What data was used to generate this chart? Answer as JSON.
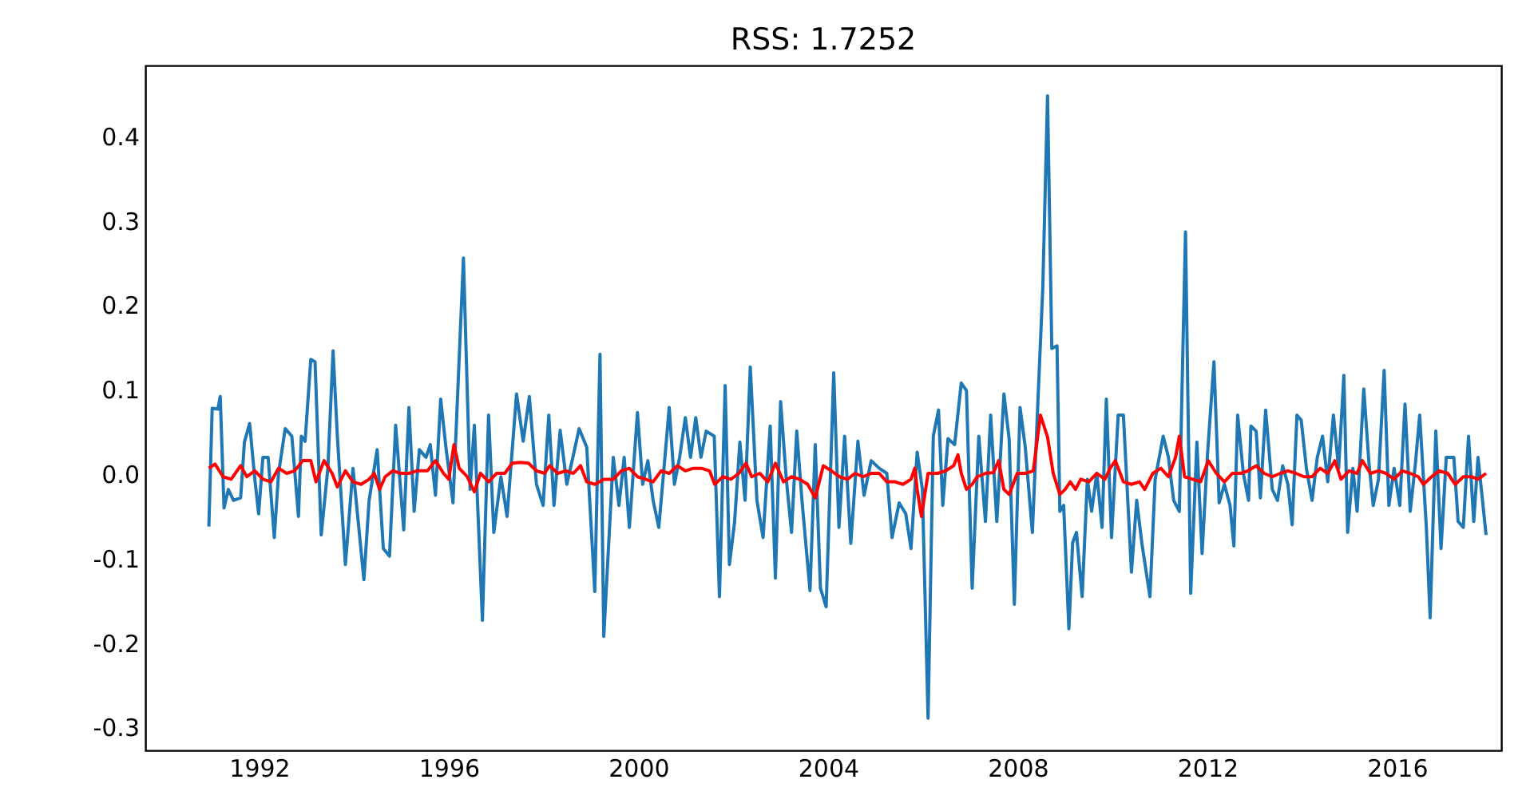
{
  "chart_data": {
    "type": "line",
    "title": "RSS: 1.7252",
    "xlim": [
      1989.6,
      2018.2
    ],
    "xticks": [
      1992,
      1996,
      2000,
      2004,
      2008,
      2012,
      2016
    ],
    "ylim": [
      -0.327,
      0.484
    ],
    "yticks": [
      -0.3,
      -0.2,
      -0.1,
      {
        "value": 0,
        "label": "0.0"
      },
      0.1,
      0.2,
      0.3,
      0.4
    ],
    "grid": false,
    "marker": "none",
    "line_style": "solid",
    "series": [
      {
        "color": "#1f77b4",
        "x": [
          1990.94,
          1991.01,
          1991.13,
          1991.18,
          1991.26,
          1991.35,
          1991.46,
          1991.61,
          1991.69,
          1991.8,
          1991.91,
          1991.99,
          1992.08,
          1992.19,
          1992.32,
          1992.41,
          1992.55,
          1992.69,
          1992.83,
          1992.89,
          1992.97,
          1993.09,
          1993.18,
          1993.31,
          1993.45,
          1993.56,
          1993.65,
          1993.82,
          1993.98,
          1994.21,
          1994.32,
          1994.49,
          1994.62,
          1994.75,
          1994.88,
          1995.05,
          1995.16,
          1995.27,
          1995.38,
          1995.52,
          1995.61,
          1995.72,
          1995.83,
          1995.94,
          1996.09,
          1996.31,
          1996.45,
          1996.54,
          1996.71,
          1996.84,
          1996.95,
          1997.1,
          1997.23,
          1997.43,
          1997.57,
          1997.7,
          1997.85,
          1997.99,
          1998.11,
          1998.22,
          1998.35,
          1998.49,
          1998.63,
          1998.75,
          1998.91,
          1999.08,
          1999.19,
          1999.27,
          1999.47,
          1999.59,
          1999.7,
          1999.81,
          1999.98,
          2000.09,
          2000.2,
          2000.31,
          2000.43,
          2000.54,
          2000.65,
          2000.76,
          2000.87,
          2000.99,
          2001.1,
          2001.21,
          2001.32,
          2001.43,
          2001.6,
          2001.71,
          2001.83,
          2001.92,
          2002.03,
          2002.14,
          2002.25,
          2002.36,
          2002.5,
          2002.63,
          2002.78,
          2002.89,
          2003.0,
          2003.12,
          2003.23,
          2003.34,
          2003.45,
          2003.62,
          2003.73,
          2003.84,
          2003.96,
          2004.12,
          2004.23,
          2004.35,
          2004.48,
          2004.63,
          2004.76,
          2004.91,
          2005.08,
          2005.24,
          2005.35,
          2005.5,
          2005.64,
          2005.75,
          2005.88,
          2005.99,
          2006.11,
          2006.22,
          2006.33,
          2006.42,
          2006.53,
          2006.67,
          2006.81,
          2006.92,
          2007.04,
          2007.18,
          2007.32,
          2007.43,
          2007.56,
          2007.71,
          2007.82,
          2007.93,
          2008.05,
          2008.16,
          2008.31,
          2008.42,
          2008.53,
          2008.63,
          2008.72,
          2008.83,
          2008.89,
          2008.97,
          2009.08,
          2009.16,
          2009.24,
          2009.36,
          2009.47,
          2009.56,
          2009.67,
          2009.78,
          2009.87,
          2009.98,
          2010.12,
          2010.23,
          2010.4,
          2010.51,
          2010.62,
          2010.79,
          2010.9,
          2011.07,
          2011.18,
          2011.29,
          2011.41,
          2011.54,
          2011.65,
          2011.78,
          2011.89,
          2012.0,
          2012.14,
          2012.25,
          2012.36,
          2012.48,
          2012.56,
          2012.64,
          2012.76,
          2012.87,
          2012.92,
          2013.03,
          2013.12,
          2013.23,
          2013.37,
          2013.48,
          2013.59,
          2013.7,
          2013.79,
          2013.89,
          2013.98,
          2014.09,
          2014.21,
          2014.32,
          2014.43,
          2014.54,
          2014.66,
          2014.77,
          2014.88,
          2014.96,
          2015.07,
          2015.16,
          2015.3,
          2015.41,
          2015.5,
          2015.61,
          2015.73,
          2015.83,
          2015.94,
          2016.06,
          2016.17,
          2016.28,
          2016.39,
          2016.48,
          2016.62,
          2016.7,
          2016.82,
          2016.93,
          2017.04,
          2017.2,
          2017.29,
          2017.4,
          2017.51,
          2017.62,
          2017.71,
          2017.88
        ],
        "values": [
          -0.062,
          0.078,
          0.077,
          0.092,
          -0.04,
          -0.018,
          -0.031,
          -0.028,
          0.038,
          0.06,
          -0.006,
          -0.047,
          0.02,
          0.02,
          -0.075,
          0.001,
          0.054,
          0.045,
          -0.05,
          0.045,
          0.039,
          0.136,
          0.133,
          -0.072,
          0.007,
          0.146,
          0.045,
          -0.107,
          0.007,
          -0.125,
          -0.031,
          0.029,
          -0.088,
          -0.097,
          0.058,
          -0.066,
          0.079,
          -0.044,
          0.029,
          0.02,
          0.035,
          -0.025,
          0.089,
          0.032,
          -0.034,
          0.256,
          -0.018,
          0.058,
          -0.173,
          0.07,
          -0.069,
          -0.003,
          -0.05,
          0.095,
          0.039,
          0.092,
          -0.012,
          -0.037,
          0.07,
          -0.037,
          0.052,
          -0.012,
          0.023,
          0.054,
          0.032,
          -0.139,
          0.142,
          -0.192,
          0.02,
          -0.037,
          0.02,
          -0.063,
          0.073,
          -0.012,
          0.016,
          -0.031,
          -0.063,
          0.007,
          0.079,
          -0.012,
          0.02,
          0.067,
          0.02,
          0.067,
          0.02,
          0.051,
          0.045,
          -0.145,
          0.105,
          -0.107,
          -0.056,
          0.038,
          -0.031,
          0.127,
          -0.031,
          -0.075,
          0.057,
          -0.123,
          0.086,
          -0.006,
          -0.069,
          0.051,
          -0.031,
          -0.138,
          0.035,
          -0.135,
          -0.157,
          0.12,
          -0.063,
          0.045,
          -0.082,
          0.039,
          -0.025,
          0.016,
          0.007,
          0.001,
          -0.075,
          -0.034,
          -0.047,
          -0.088,
          0.026,
          -0.018,
          -0.289,
          0.045,
          0.076,
          -0.037,
          0.042,
          0.035,
          0.108,
          0.099,
          -0.135,
          0.045,
          -0.056,
          0.07,
          -0.056,
          0.095,
          0.042,
          -0.154,
          0.079,
          0.032,
          -0.069,
          0.077,
          0.221,
          0.448,
          0.149,
          0.152,
          -0.044,
          -0.037,
          -0.183,
          -0.081,
          -0.069,
          -0.145,
          -0.006,
          -0.044,
          0.001,
          -0.063,
          0.089,
          -0.075,
          0.07,
          0.07,
          -0.116,
          -0.031,
          -0.082,
          -0.145,
          -0.006,
          0.045,
          0.02,
          -0.031,
          -0.044,
          0.287,
          -0.141,
          0.038,
          -0.094,
          0.02,
          0.133,
          -0.034,
          -0.012,
          -0.037,
          -0.085,
          0.07,
          0.001,
          -0.031,
          0.057,
          0.051,
          -0.028,
          0.076,
          -0.018,
          -0.031,
          0.01,
          -0.012,
          -0.06,
          0.07,
          0.064,
          0.007,
          -0.031,
          0.02,
          0.045,
          -0.009,
          0.07,
          0.007,
          0.117,
          -0.069,
          0.007,
          -0.044,
          0.101,
          0.013,
          -0.037,
          -0.006,
          0.123,
          -0.037,
          0.007,
          -0.037,
          0.083,
          -0.044,
          0.013,
          0.07,
          -0.063,
          -0.17,
          0.051,
          -0.088,
          0.02,
          0.02,
          -0.056,
          -0.063,
          0.045,
          -0.056,
          0.02,
          -0.072
        ]
      },
      {
        "color": "#ff0000",
        "x": [
          1990.94,
          1991.07,
          1991.24,
          1991.41,
          1991.61,
          1991.74,
          1991.91,
          1992.08,
          1992.25,
          1992.41,
          1992.58,
          1992.75,
          1992.92,
          1993.09,
          1993.2,
          1993.37,
          1993.54,
          1993.65,
          1993.82,
          1993.98,
          1994.15,
          1994.32,
          1994.43,
          1994.54,
          1994.66,
          1994.82,
          1994.99,
          1995.16,
          1995.33,
          1995.55,
          1995.72,
          1995.89,
          1996.0,
          1996.11,
          1996.22,
          1996.39,
          1996.54,
          1996.67,
          1996.84,
          1997.01,
          1997.18,
          1997.34,
          1997.51,
          1997.68,
          1997.85,
          1998.02,
          1998.13,
          1998.3,
          1998.47,
          1998.63,
          1998.78,
          1998.91,
          1999.08,
          1999.27,
          1999.47,
          1999.64,
          1999.81,
          1999.98,
          2000.15,
          2000.31,
          2000.48,
          2000.65,
          2000.82,
          2000.99,
          2001.16,
          2001.33,
          2001.5,
          2001.61,
          2001.78,
          2001.95,
          2002.12,
          2002.27,
          2002.39,
          2002.56,
          2002.73,
          2002.89,
          2003.06,
          2003.23,
          2003.4,
          2003.57,
          2003.73,
          2003.9,
          2004.07,
          2004.24,
          2004.41,
          2004.57,
          2004.74,
          2004.91,
          2005.08,
          2005.24,
          2005.41,
          2005.58,
          2005.75,
          2005.83,
          2005.88,
          2005.97,
          2006.11,
          2006.31,
          2006.48,
          2006.65,
          2006.74,
          2006.81,
          2006.92,
          2007.04,
          2007.15,
          2007.32,
          2007.49,
          2007.6,
          2007.71,
          2007.82,
          2007.99,
          2008.16,
          2008.33,
          2008.48,
          2008.63,
          2008.75,
          2008.89,
          2009.0,
          2009.11,
          2009.22,
          2009.33,
          2009.5,
          2009.67,
          2009.84,
          2009.95,
          2010.06,
          2010.23,
          2010.4,
          2010.57,
          2010.68,
          2010.85,
          2011.02,
          2011.18,
          2011.33,
          2011.41,
          2011.52,
          2011.69,
          2011.86,
          2012.02,
          2012.19,
          2012.36,
          2012.53,
          2012.7,
          2012.86,
          2013.03,
          2013.2,
          2013.37,
          2013.54,
          2013.7,
          2013.87,
          2014.04,
          2014.21,
          2014.38,
          2014.54,
          2014.69,
          2014.82,
          2014.99,
          2015.16,
          2015.27,
          2015.44,
          2015.61,
          2015.77,
          2015.94,
          2016.11,
          2016.28,
          2016.45,
          2016.56,
          2016.73,
          2016.89,
          2017.07,
          2017.23,
          2017.4,
          2017.57,
          2017.71,
          2017.88
        ],
        "values": [
          0.007,
          0.012,
          -0.003,
          -0.006,
          0.01,
          -0.003,
          0.004,
          -0.006,
          -0.009,
          0.007,
          0.001,
          0.004,
          0.016,
          0.016,
          -0.009,
          0.016,
          0.001,
          -0.015,
          0.004,
          -0.009,
          -0.012,
          -0.006,
          0.001,
          -0.018,
          -0.003,
          0.004,
          0.001,
          0.001,
          0.004,
          0.004,
          0.016,
          0.001,
          -0.006,
          0.035,
          0.007,
          -0.003,
          -0.021,
          0.001,
          -0.009,
          0.001,
          0.001,
          0.013,
          0.014,
          0.013,
          0.004,
          0.001,
          0.01,
          0.001,
          0.004,
          0.001,
          0.01,
          -0.009,
          -0.012,
          -0.006,
          -0.006,
          0.004,
          0.007,
          -0.003,
          -0.006,
          -0.009,
          0.004,
          0.001,
          0.01,
          0.004,
          0.007,
          0.007,
          0.004,
          -0.012,
          -0.003,
          -0.006,
          0.001,
          0.013,
          -0.003,
          0.001,
          -0.009,
          0.013,
          -0.009,
          -0.003,
          -0.006,
          -0.012,
          -0.028,
          0.01,
          0.004,
          -0.003,
          -0.006,
          0.001,
          -0.003,
          0.001,
          0.001,
          -0.009,
          -0.009,
          -0.012,
          -0.006,
          0.007,
          -0.018,
          -0.05,
          0.001,
          0.001,
          0.004,
          0.01,
          0.023,
          0.001,
          -0.018,
          -0.012,
          -0.003,
          0.001,
          0.002,
          0.016,
          -0.018,
          -0.024,
          0.001,
          0.001,
          0.004,
          0.07,
          0.044,
          0.001,
          -0.024,
          -0.018,
          -0.009,
          -0.018,
          -0.006,
          -0.009,
          0.001,
          -0.006,
          0.007,
          0.016,
          -0.009,
          -0.012,
          -0.009,
          -0.018,
          0.001,
          0.007,
          -0.003,
          0.02,
          0.045,
          -0.003,
          -0.006,
          -0.009,
          0.016,
          0.001,
          -0.009,
          0.001,
          0.001,
          0.004,
          0.01,
          0.001,
          -0.003,
          0.001,
          0.004,
          0.001,
          -0.003,
          -0.003,
          0.007,
          0.001,
          0.016,
          -0.006,
          0.004,
          0.001,
          0.016,
          0.001,
          0.004,
          0.001,
          -0.006,
          0.004,
          0.001,
          -0.003,
          -0.012,
          -0.003,
          0.004,
          0.001,
          -0.012,
          -0.003,
          -0.003,
          -0.006,
          0.001
        ]
      }
    ]
  }
}
